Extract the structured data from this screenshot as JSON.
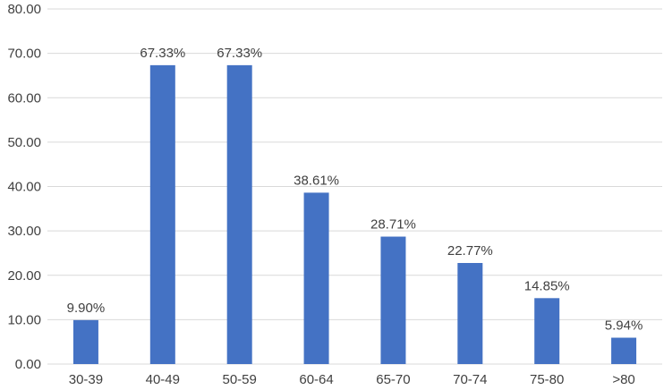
{
  "chart_data": {
    "type": "bar",
    "title": "",
    "xlabel": "",
    "ylabel": "",
    "categories": [
      "30-39",
      "40-49",
      "50-59",
      "60-64",
      "65-70",
      "70-74",
      "75-80",
      ">80"
    ],
    "values": [
      9.9,
      67.33,
      67.33,
      38.61,
      28.71,
      22.77,
      14.85,
      5.94
    ],
    "data_labels": [
      "9.90%",
      "67.33%",
      "67.33%",
      "38.61%",
      "28.71%",
      "22.77%",
      "14.85%",
      "5.94%"
    ],
    "ylim": [
      0,
      80
    ],
    "y_ticks": [
      "0.00",
      "10.00",
      "20.00",
      "30.00",
      "40.00",
      "50.00",
      "60.00",
      "70.00",
      "80.00"
    ],
    "y_tick_values": [
      0,
      10,
      20,
      30,
      40,
      50,
      60,
      70,
      80
    ],
    "grid": true,
    "legend": "none",
    "colors": {
      "bar": "#4472c4",
      "grid": "#d9d9d9",
      "text": "#404040"
    }
  }
}
